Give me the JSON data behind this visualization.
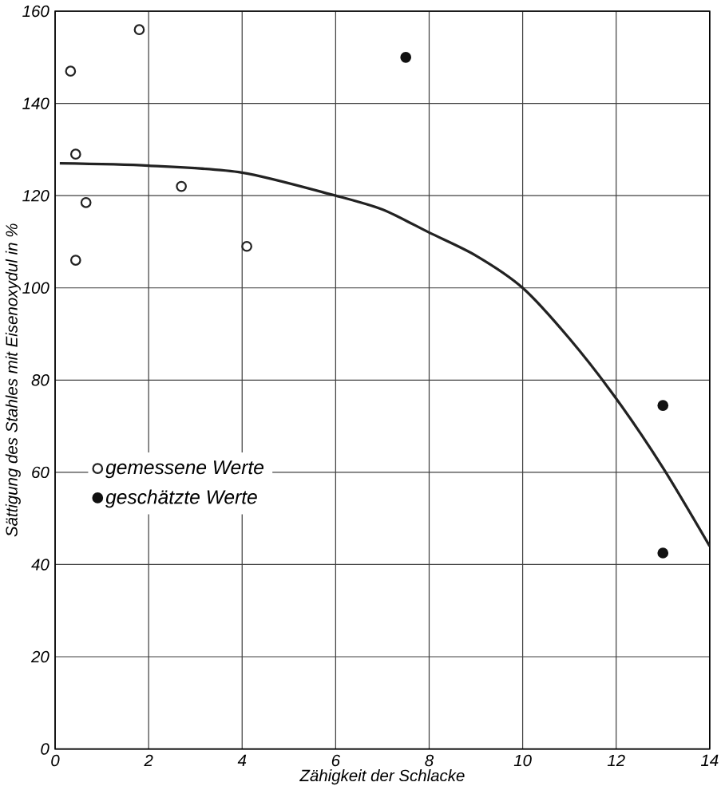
{
  "chart_data": {
    "type": "scatter",
    "xlabel": "Zähigkeit der Schlacke",
    "ylabel": "Sättigung des Stahles mit Eisenoxydul in %",
    "xlim": [
      0,
      14
    ],
    "ylim": [
      0,
      160
    ],
    "xticks": [
      0,
      2,
      4,
      6,
      8,
      10,
      12,
      14
    ],
    "yticks": [
      0,
      20,
      40,
      60,
      80,
      100,
      120,
      140,
      160
    ],
    "grid": true,
    "legend": "left",
    "series": [
      {
        "name": "gemessene Werte",
        "color": "#222222",
        "marker": "circle",
        "x": [
          0.33,
          1.8,
          0.44,
          0.66,
          0.44,
          2.7,
          4.1
        ],
        "values": [
          147,
          156,
          129,
          118.5,
          106,
          122,
          109
        ]
      },
      {
        "name": "geschätzte Werte",
        "color": "#111111",
        "marker": "circle",
        "x": [
          7.5,
          13,
          13
        ],
        "values": [
          150,
          74.5,
          42.5
        ]
      },
      {
        "type": "line",
        "color": "#222222",
        "marker": "none",
        "x": [
          0.1,
          2,
          4,
          6,
          7,
          8,
          9,
          10,
          11,
          12,
          13,
          14
        ],
        "values": [
          127,
          126.5,
          125,
          120,
          117,
          112,
          107,
          100,
          89,
          76,
          61,
          44
        ]
      }
    ]
  }
}
